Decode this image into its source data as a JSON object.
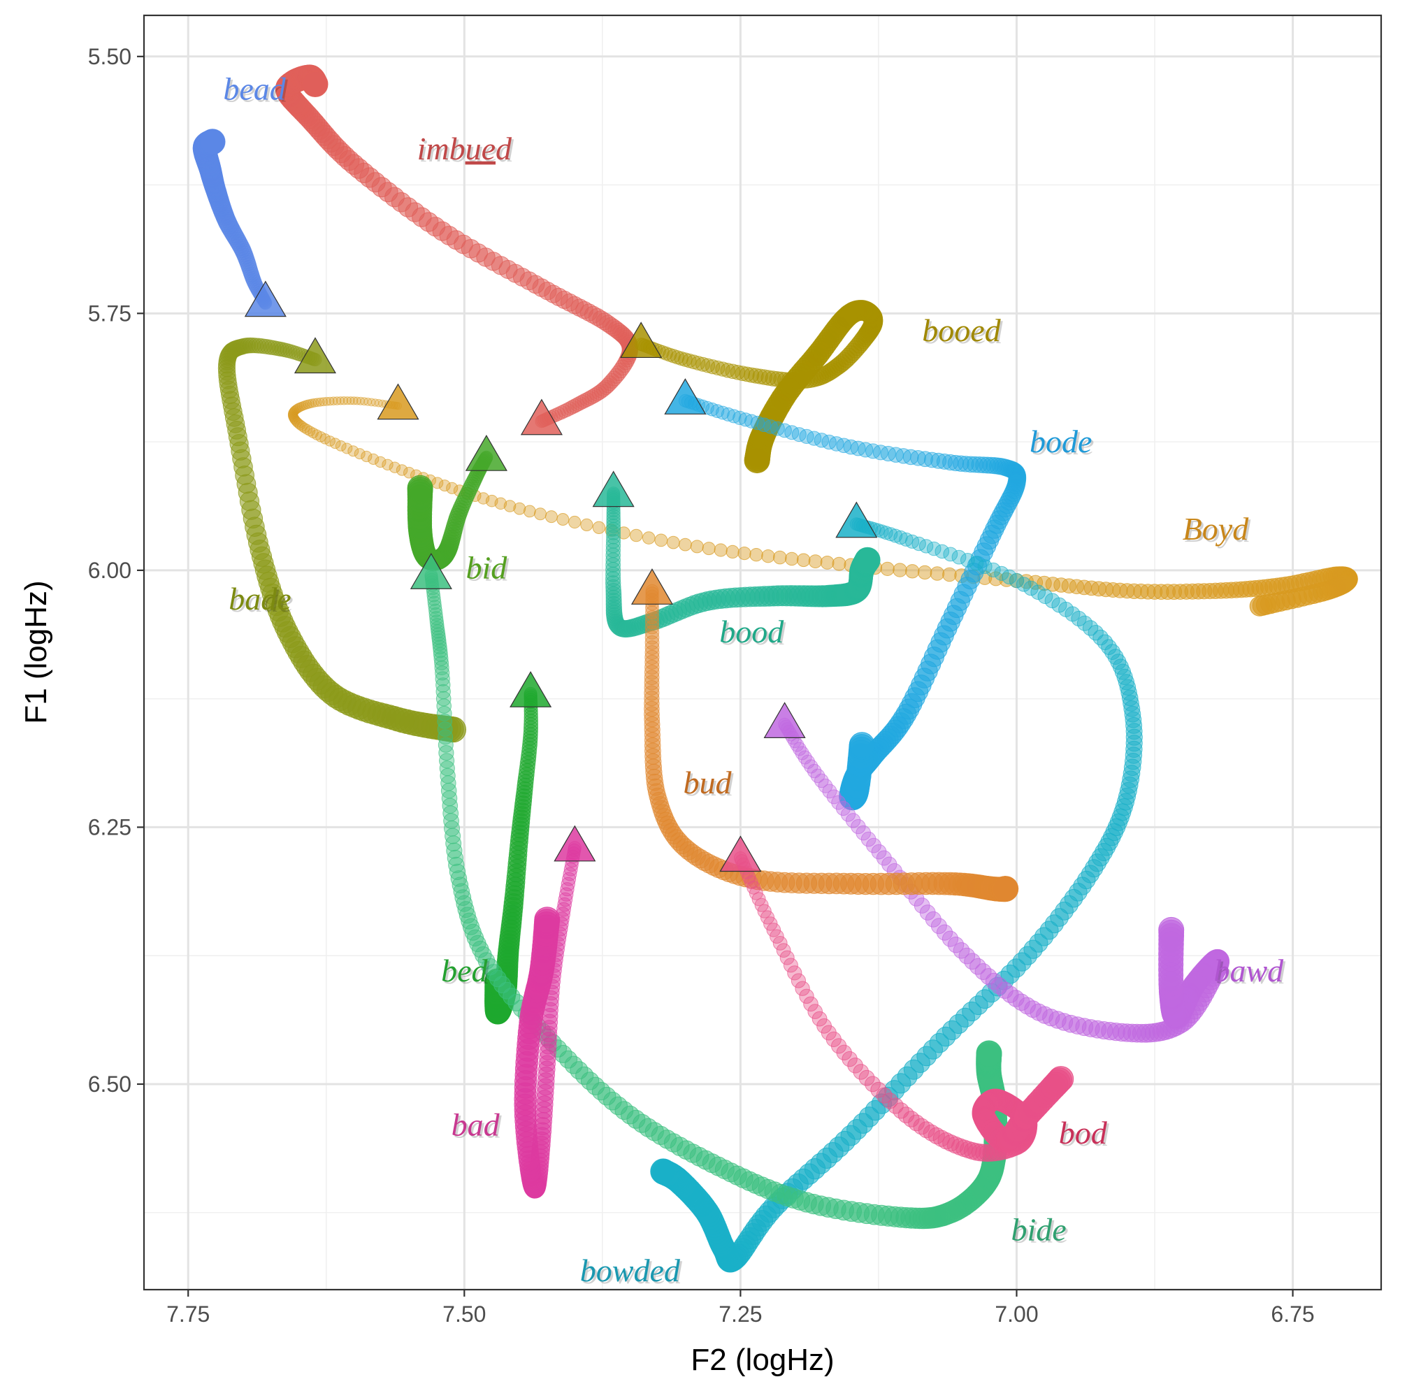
{
  "chart_data": {
    "type": "line",
    "xlabel": "F2 (logHz)",
    "ylabel": "F1 (logHz)",
    "x_axis_reversed": true,
    "y_axis_reversed": true,
    "xlim": [
      6.67,
      7.79
    ],
    "ylim": [
      5.46,
      6.7
    ],
    "x_ticks": [
      7.75,
      7.5,
      7.25,
      7.0,
      6.75
    ],
    "x_tick_labels": [
      "7.75",
      "7.50",
      "7.25",
      "7.00",
      "6.75"
    ],
    "y_ticks": [
      5.5,
      5.75,
      6.0,
      6.25,
      6.5
    ],
    "y_tick_labels": [
      "5.50",
      "5.75",
      "6.00",
      "6.25",
      "6.50"
    ],
    "grid": true,
    "legend": "none",
    "marker_at_trajectory_start": "triangle",
    "series": [
      {
        "name": "bead",
        "color": "#5b87e6",
        "points": [
          [
            7.68,
            5.74
          ],
          [
            7.69,
            5.72
          ],
          [
            7.7,
            5.69
          ],
          [
            7.715,
            5.66
          ],
          [
            7.725,
            5.63
          ],
          [
            7.73,
            5.61
          ],
          [
            7.735,
            5.589
          ],
          [
            7.728,
            5.583
          ]
        ],
        "label": "bead"
      },
      {
        "name": "imbued",
        "color": "#e0605a",
        "points": [
          [
            7.43,
            5.855
          ],
          [
            7.4,
            5.84
          ],
          [
            7.37,
            5.82
          ],
          [
            7.35,
            5.785
          ],
          [
            7.37,
            5.76
          ],
          [
            7.43,
            5.725
          ],
          [
            7.52,
            5.67
          ],
          [
            7.6,
            5.605
          ],
          [
            7.64,
            5.56
          ],
          [
            7.66,
            5.535
          ],
          [
            7.655,
            5.525
          ],
          [
            7.64,
            5.52
          ],
          [
            7.635,
            5.527
          ]
        ],
        "label": "imbued"
      },
      {
        "name": "booed",
        "color": "#a89200",
        "points": [
          [
            7.34,
            5.78
          ],
          [
            7.3,
            5.795
          ],
          [
            7.24,
            5.81
          ],
          [
            7.19,
            5.815
          ],
          [
            7.16,
            5.8
          ],
          [
            7.135,
            5.77
          ],
          [
            7.13,
            5.755
          ],
          [
            7.14,
            5.747
          ],
          [
            7.155,
            5.755
          ],
          [
            7.18,
            5.79
          ],
          [
            7.21,
            5.83
          ],
          [
            7.23,
            5.87
          ],
          [
            7.235,
            5.893
          ]
        ],
        "label": "booed"
      },
      {
        "name": "bade",
        "color": "#8c9a1a",
        "points": [
          [
            7.635,
            5.795
          ],
          [
            7.665,
            5.785
          ],
          [
            7.7,
            5.782
          ],
          [
            7.715,
            5.8
          ],
          [
            7.705,
            5.87
          ],
          [
            7.685,
            5.98
          ],
          [
            7.66,
            6.06
          ],
          [
            7.62,
            6.12
          ],
          [
            7.56,
            6.145
          ],
          [
            7.51,
            6.155
          ]
        ],
        "label": "bade"
      },
      {
        "name": "Boyd",
        "color": "#d89a20",
        "points": [
          [
            7.56,
            5.84
          ],
          [
            7.6,
            5.835
          ],
          [
            7.64,
            5.838
          ],
          [
            7.655,
            5.85
          ],
          [
            7.63,
            5.87
          ],
          [
            7.55,
            5.905
          ],
          [
            7.45,
            5.94
          ],
          [
            7.3,
            5.975
          ],
          [
            7.15,
            5.995
          ],
          [
            7.0,
            6.01
          ],
          [
            6.9,
            6.02
          ],
          [
            6.82,
            6.02
          ],
          [
            6.76,
            6.015
          ],
          [
            6.71,
            6.005
          ],
          [
            6.7,
            6.01
          ],
          [
            6.72,
            6.02
          ],
          [
            6.78,
            6.035
          ]
        ],
        "label": "Boyd"
      },
      {
        "name": "bid",
        "color": "#45a82a",
        "points": [
          [
            7.48,
            5.89
          ],
          [
            7.49,
            5.91
          ],
          [
            7.505,
            5.945
          ],
          [
            7.515,
            5.98
          ],
          [
            7.525,
            5.99
          ],
          [
            7.535,
            5.985
          ],
          [
            7.54,
            5.96
          ],
          [
            7.54,
            5.92
          ]
        ],
        "label": "bid"
      },
      {
        "name": "bood",
        "color": "#28b898",
        "points": [
          [
            7.365,
            5.925
          ],
          [
            7.365,
            5.96
          ],
          [
            7.365,
            6.02
          ],
          [
            7.36,
            6.055
          ],
          [
            7.33,
            6.05
          ],
          [
            7.28,
            6.03
          ],
          [
            7.22,
            6.025
          ],
          [
            7.17,
            6.025
          ],
          [
            7.145,
            6.02
          ],
          [
            7.14,
            6.0
          ],
          [
            7.135,
            5.99
          ]
        ],
        "label": "bood"
      },
      {
        "name": "bode",
        "color": "#22a8e0",
        "points": [
          [
            7.3,
            5.835
          ],
          [
            7.24,
            5.855
          ],
          [
            7.15,
            5.88
          ],
          [
            7.06,
            5.895
          ],
          [
            7.01,
            5.9
          ],
          [
            7.0,
            5.915
          ],
          [
            7.02,
            5.96
          ],
          [
            7.06,
            6.05
          ],
          [
            7.1,
            6.14
          ],
          [
            7.13,
            6.18
          ],
          [
            7.145,
            6.2
          ],
          [
            7.15,
            6.22
          ],
          [
            7.145,
            6.215
          ],
          [
            7.14,
            6.17
          ]
        ],
        "label": "bode"
      },
      {
        "name": "bowded",
        "color": "#1ab0c8",
        "points": [
          [
            7.145,
            5.955
          ],
          [
            7.1,
            5.97
          ],
          [
            7.0,
            6.01
          ],
          [
            6.92,
            6.07
          ],
          [
            6.895,
            6.14
          ],
          [
            6.9,
            6.22
          ],
          [
            6.93,
            6.29
          ],
          [
            6.99,
            6.375
          ],
          [
            7.07,
            6.46
          ],
          [
            7.15,
            6.55
          ],
          [
            7.22,
            6.62
          ],
          [
            7.255,
            6.67
          ],
          [
            7.265,
            6.66
          ],
          [
            7.28,
            6.625
          ],
          [
            7.305,
            6.595
          ],
          [
            7.32,
            6.585
          ]
        ],
        "label": "bowded"
      },
      {
        "name": "bed",
        "color": "#1ea82e",
        "points": [
          [
            7.44,
            6.12
          ],
          [
            7.44,
            6.16
          ],
          [
            7.445,
            6.21
          ],
          [
            7.45,
            6.26
          ],
          [
            7.455,
            6.32
          ],
          [
            7.46,
            6.37
          ],
          [
            7.463,
            6.41
          ],
          [
            7.47,
            6.43
          ],
          [
            7.47,
            6.4
          ]
        ],
        "label": "bed"
      },
      {
        "name": "bide",
        "color": "#3cc080",
        "points": [
          [
            7.53,
            6.005
          ],
          [
            7.525,
            6.05
          ],
          [
            7.52,
            6.1
          ],
          [
            7.515,
            6.2
          ],
          [
            7.505,
            6.3
          ],
          [
            7.48,
            6.38
          ],
          [
            7.42,
            6.46
          ],
          [
            7.35,
            6.53
          ],
          [
            7.27,
            6.58
          ],
          [
            7.19,
            6.615
          ],
          [
            7.1,
            6.63
          ],
          [
            7.06,
            6.625
          ],
          [
            7.03,
            6.6
          ],
          [
            7.02,
            6.57
          ],
          [
            7.02,
            6.52
          ],
          [
            7.025,
            6.49
          ],
          [
            7.025,
            6.47
          ]
        ],
        "label": "bide"
      },
      {
        "name": "bawd",
        "color": "#c068e0",
        "points": [
          [
            7.21,
            6.15
          ],
          [
            7.18,
            6.2
          ],
          [
            7.12,
            6.28
          ],
          [
            7.05,
            6.37
          ],
          [
            6.98,
            6.43
          ],
          [
            6.9,
            6.45
          ],
          [
            6.85,
            6.44
          ],
          [
            6.82,
            6.39
          ],
          [
            6.82,
            6.38
          ],
          [
            6.84,
            6.405
          ],
          [
            6.855,
            6.435
          ],
          [
            6.86,
            6.41
          ],
          [
            6.86,
            6.35
          ]
        ],
        "label": "bawd"
      },
      {
        "name": "bud",
        "color": "#e08830",
        "points": [
          [
            7.33,
            6.02
          ],
          [
            7.33,
            6.08
          ],
          [
            7.33,
            6.15
          ],
          [
            7.325,
            6.22
          ],
          [
            7.3,
            6.27
          ],
          [
            7.24,
            6.3
          ],
          [
            7.15,
            6.305
          ],
          [
            7.06,
            6.305
          ],
          [
            7.02,
            6.31
          ],
          [
            7.01,
            6.31
          ]
        ],
        "label": "bud"
      },
      {
        "name": "bod",
        "color": "#e85088",
        "points": [
          [
            7.25,
            6.28
          ],
          [
            7.22,
            6.35
          ],
          [
            7.17,
            6.45
          ],
          [
            7.1,
            6.53
          ],
          [
            7.04,
            6.565
          ],
          [
            7.0,
            6.56
          ],
          [
            6.99,
            6.54
          ],
          [
            7.0,
            6.525
          ],
          [
            7.02,
            6.515
          ],
          [
            7.03,
            6.53
          ],
          [
            7.01,
            6.555
          ],
          [
            6.99,
            6.53
          ],
          [
            6.96,
            6.495
          ]
        ],
        "label": "bod"
      },
      {
        "name": "bad",
        "color": "#dd3aa0",
        "points": [
          [
            7.4,
            6.27
          ],
          [
            7.41,
            6.33
          ],
          [
            7.42,
            6.4
          ],
          [
            7.425,
            6.48
          ],
          [
            7.43,
            6.555
          ],
          [
            7.435,
            6.6
          ],
          [
            7.44,
            6.585
          ],
          [
            7.445,
            6.52
          ],
          [
            7.44,
            6.44
          ],
          [
            7.43,
            6.39
          ],
          [
            7.425,
            6.34
          ]
        ],
        "label": "bad"
      }
    ],
    "labels": [
      {
        "text": "bead",
        "x": 7.69,
        "y": 5.542,
        "color": "#5b87e6"
      },
      {
        "text": "imbued",
        "x": 7.5,
        "y": 5.6,
        "color": "#c04848",
        "underline": "ue"
      },
      {
        "text": "booed",
        "x": 7.05,
        "y": 5.777,
        "color": "#a08800"
      },
      {
        "text": "bode",
        "x": 6.96,
        "y": 5.885,
        "color": "#1f9ad8"
      },
      {
        "text": "Boyd",
        "x": 6.82,
        "y": 5.97,
        "color": "#c8861a"
      },
      {
        "text": "bade",
        "x": 7.685,
        "y": 6.038,
        "color": "#7c8a10"
      },
      {
        "text": "bid",
        "x": 7.48,
        "y": 6.008,
        "color": "#55a020"
      },
      {
        "text": "bood",
        "x": 7.24,
        "y": 6.07,
        "color": "#20a888"
      },
      {
        "text": "bud",
        "x": 7.28,
        "y": 6.217,
        "color": "#c06a20"
      },
      {
        "text": "bed",
        "x": 7.5,
        "y": 6.4,
        "color": "#24a030"
      },
      {
        "text": "bawd",
        "x": 6.79,
        "y": 6.4,
        "color": "#b055d0"
      },
      {
        "text": "bad",
        "x": 7.49,
        "y": 6.55,
        "color": "#c83890"
      },
      {
        "text": "bod",
        "x": 6.94,
        "y": 6.558,
        "color": "#c83058"
      },
      {
        "text": "bide",
        "x": 6.98,
        "y": 6.652,
        "color": "#30a070"
      },
      {
        "text": "bowded",
        "x": 7.35,
        "y": 6.692,
        "color": "#1a98b0"
      }
    ]
  }
}
